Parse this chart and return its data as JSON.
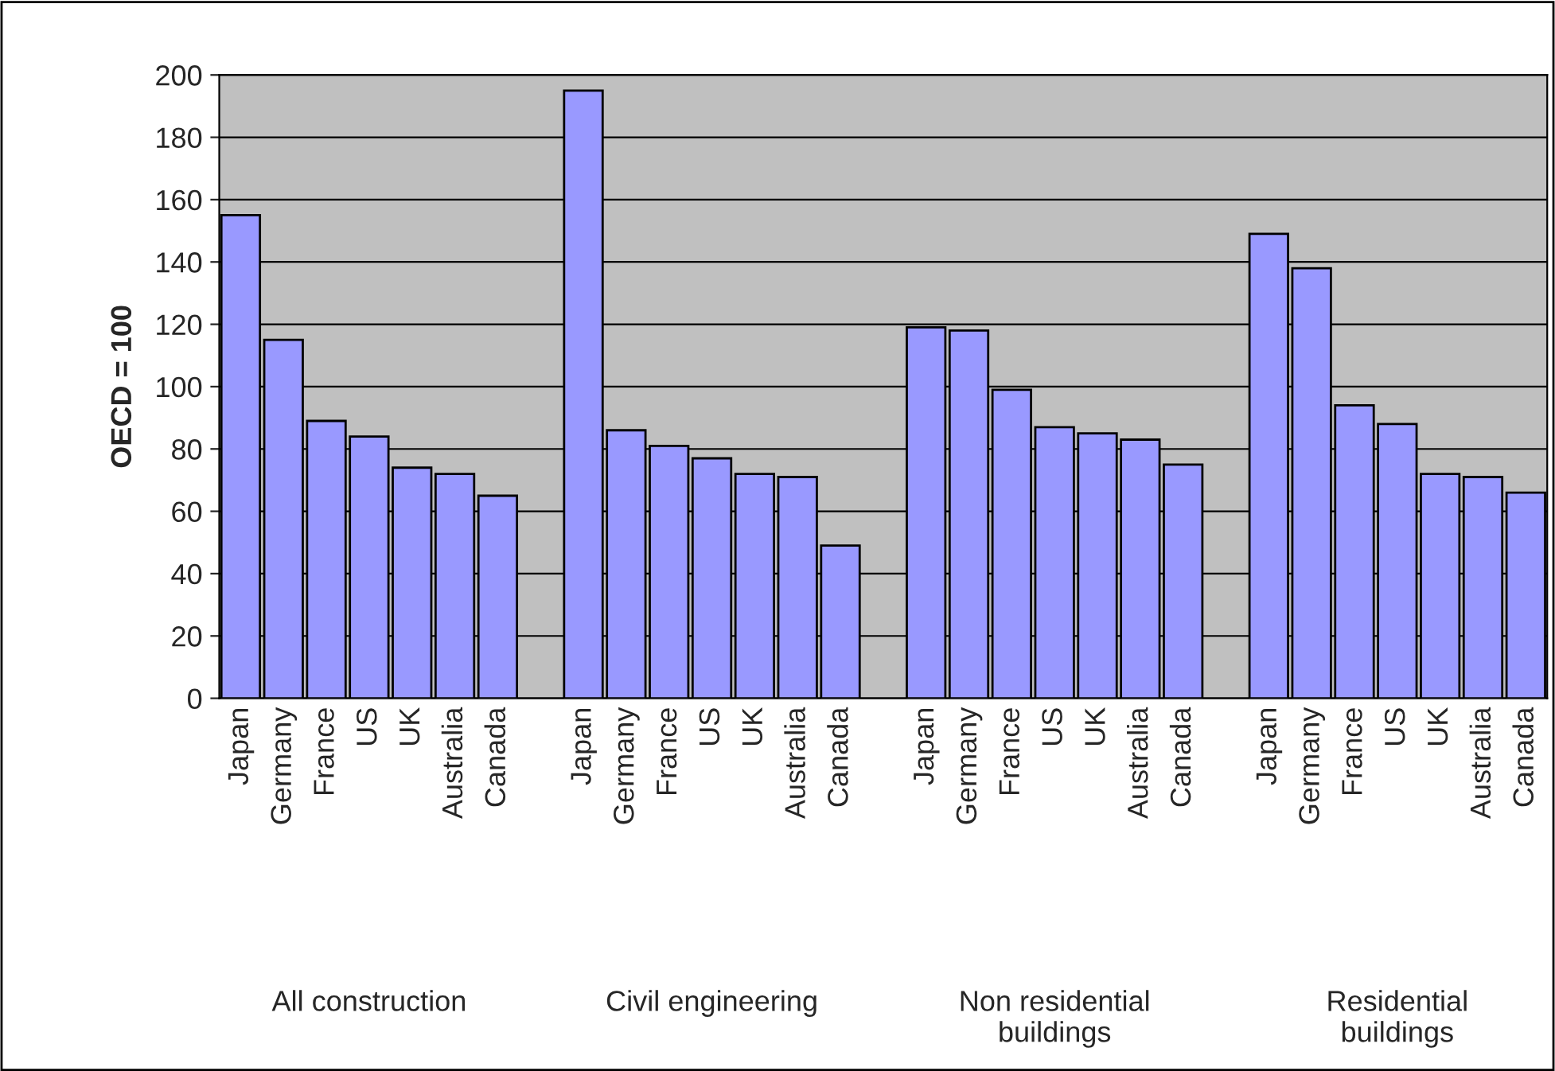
{
  "chart_data": {
    "type": "bar",
    "ylabel": "OECD = 100",
    "categories": [
      "Japan",
      "Germany",
      "France",
      "US",
      "UK",
      "Australia",
      "Canada",
      null,
      "Japan",
      "Germany",
      "France",
      "US",
      "UK",
      "Australia",
      "Canada",
      null,
      "Japan",
      "Germany",
      "France",
      "US",
      "UK",
      "Australia",
      "Canada",
      null,
      "Japan",
      "Germany",
      "France",
      "US",
      "UK",
      "Australia",
      "Canada"
    ],
    "values": [
      155,
      115,
      89,
      84,
      74,
      72,
      65,
      null,
      195,
      86,
      81,
      77,
      72,
      71,
      49,
      null,
      119,
      118,
      99,
      87,
      85,
      83,
      75,
      null,
      149,
      138,
      94,
      88,
      72,
      71,
      66
    ],
    "color": "#9999ff",
    "ylim": [
      0,
      200
    ],
    "yticks": [
      0,
      20,
      40,
      60,
      80,
      100,
      120,
      140,
      160,
      180,
      200
    ],
    "grid": "y",
    "legend": false,
    "annotations": [
      "All construction",
      "Civil engineering",
      "Non residential\nbuildings",
      "Residential\nbuildings"
    ]
  }
}
